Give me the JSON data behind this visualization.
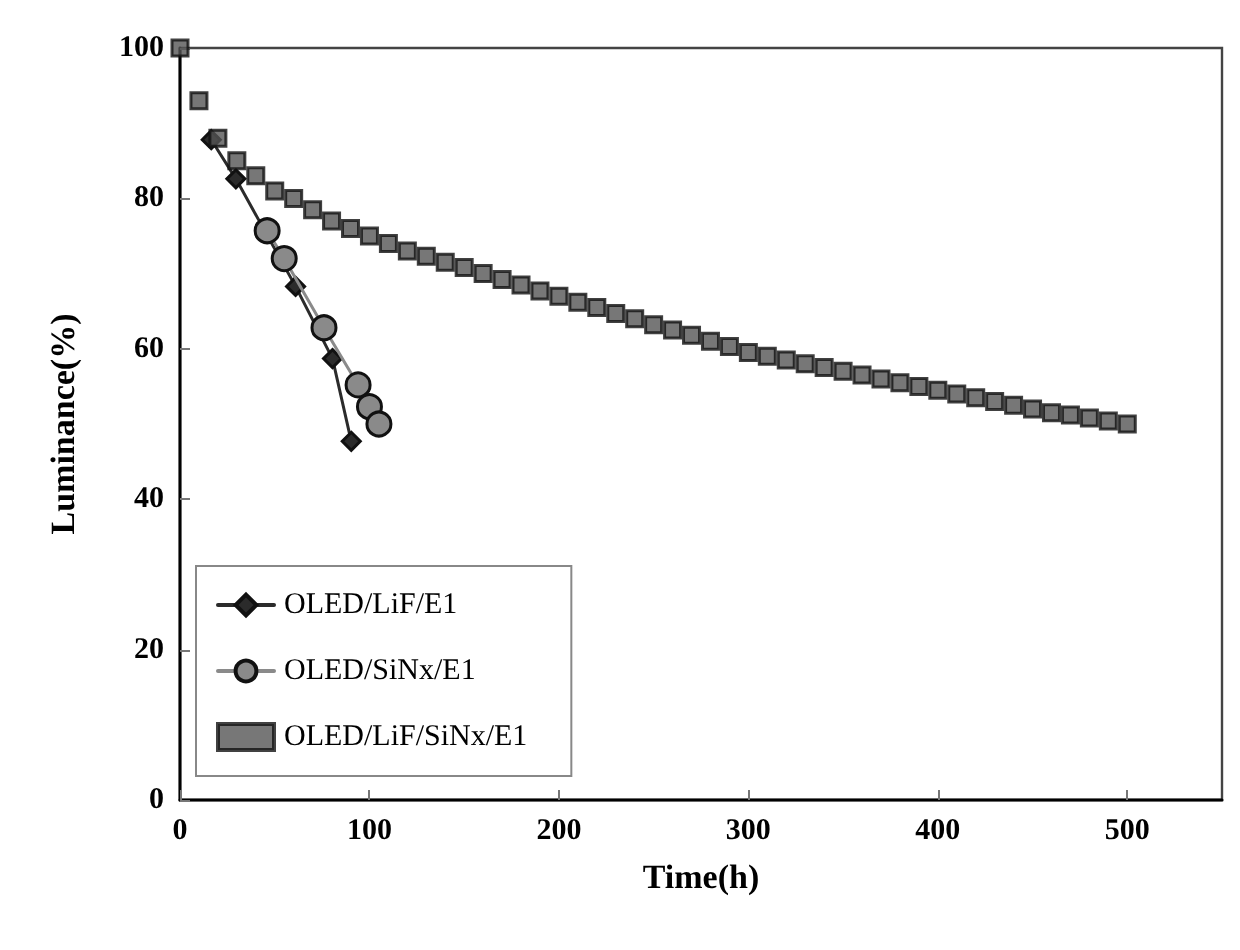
{
  "chart_data": {
    "type": "line",
    "xlabel": "Time(h)",
    "ylabel": "Luminance(%)",
    "xlim": [
      0,
      550
    ],
    "xticks": [
      0,
      100,
      200,
      300,
      400,
      500
    ],
    "ylim": [
      0,
      100
    ],
    "yticks": [
      0,
      20,
      40,
      60,
      80,
      100
    ],
    "grid": false,
    "legend": "bottom left",
    "line_style": "solid",
    "series": [
      {
        "name": "OLED/LiF/E1",
        "color": "#2b2b2b",
        "marker": "diamond",
        "x": [
          16.5,
          29.5,
          61,
          80.5,
          90.4
        ],
        "values": [
          87.8,
          82.6,
          68.3,
          58.7,
          47.7
        ]
      },
      {
        "name": "OLED/SiNx/E1",
        "color": "#8a8a8a",
        "marker": "circle",
        "x": [
          46,
          55,
          76,
          94,
          100,
          105
        ],
        "values": [
          75.7,
          72,
          62.8,
          55.2,
          52.3,
          50
        ]
      },
      {
        "name": "OLED/LiF/SiNx/E1",
        "type": "scatter",
        "color": "#555555",
        "marker": "square",
        "x": [
          0,
          10,
          20,
          30,
          40,
          50,
          60,
          70,
          80,
          90,
          100,
          110,
          120,
          130,
          140,
          150,
          160,
          170,
          180,
          190,
          200,
          210,
          220,
          230,
          240,
          250,
          260,
          270,
          280,
          290,
          300,
          310,
          320,
          330,
          340,
          350,
          360,
          370,
          380,
          390,
          400,
          410,
          420,
          430,
          440,
          450,
          460,
          470,
          480,
          490,
          500
        ],
        "values": [
          100,
          93,
          88,
          85,
          83,
          81,
          80,
          78.5,
          77,
          76,
          75,
          74,
          73,
          72.3,
          71.5,
          70.8,
          70,
          69.2,
          68.5,
          67.7,
          67,
          66.2,
          65.5,
          64.7,
          64,
          63.2,
          62.5,
          61.8,
          61,
          60.3,
          59.5,
          59,
          58.5,
          58,
          57.5,
          57,
          56.5,
          56,
          55.5,
          55,
          54.5,
          54,
          53.5,
          53,
          52.5,
          52,
          51.5,
          51.2,
          50.8,
          50.4,
          50
        ]
      }
    ]
  }
}
